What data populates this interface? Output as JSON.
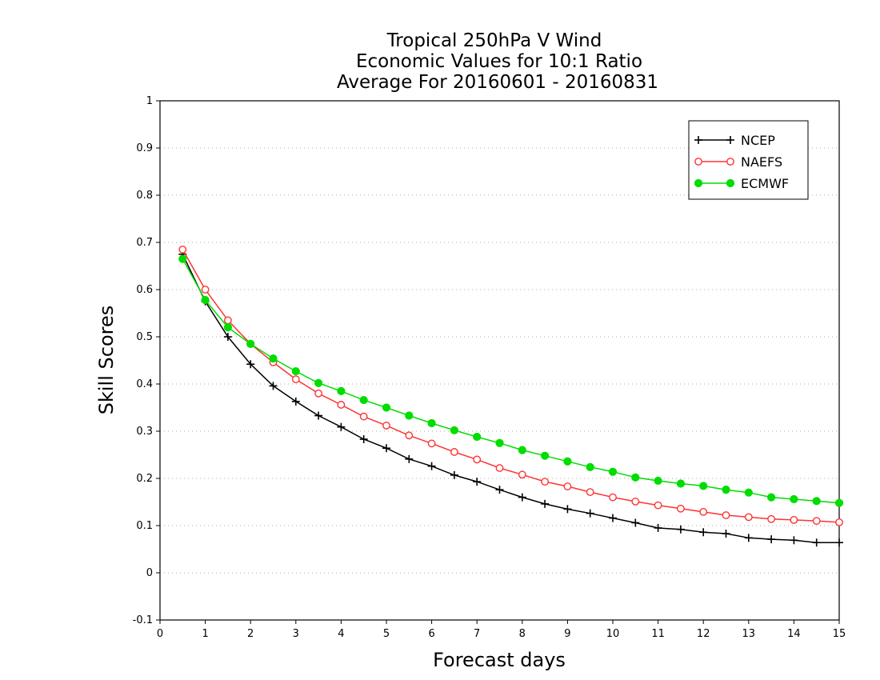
{
  "chart_data": {
    "type": "line",
    "title_lines": [
      "Tropical 250hPa V Wind",
      "Economic Values for 10:1 Ratio",
      "Average For 20160601 - 20160831"
    ],
    "xlabel": "Forecast days",
    "ylabel": "Skill Scores",
    "xlim": [
      0,
      15
    ],
    "ylim": [
      -0.1,
      1
    ],
    "x_ticks": [
      "0",
      "1",
      "2",
      "3",
      "4",
      "5",
      "6",
      "7",
      "8",
      "9",
      "10",
      "11",
      "12",
      "13",
      "14",
      "15"
    ],
    "y_ticks": [
      "-0.1",
      "0",
      "0.1",
      "0.2",
      "0.3",
      "0.4",
      "0.5",
      "0.6",
      "0.7",
      "0.8",
      "0.9",
      "1"
    ],
    "grid": "horizontal dotted",
    "legend_position": "top-right",
    "x": [
      0.5,
      1,
      1.5,
      2,
      2.5,
      3,
      3.5,
      4,
      4.5,
      5,
      5.5,
      6,
      6.5,
      7,
      7.5,
      8,
      8.5,
      9,
      9.5,
      10,
      10.5,
      11,
      11.5,
      12,
      12.5,
      13,
      13.5,
      14,
      14.5,
      15
    ],
    "series": [
      {
        "name": "NCEP",
        "color": "#000000",
        "marker": "plus",
        "values": [
          0.675,
          0.575,
          0.5,
          0.442,
          0.396,
          0.363,
          0.333,
          0.309,
          0.283,
          0.264,
          0.241,
          0.226,
          0.207,
          0.193,
          0.176,
          0.16,
          0.146,
          0.135,
          0.126,
          0.116,
          0.106,
          0.095,
          0.092,
          0.086,
          0.083,
          0.074,
          0.071,
          0.069,
          0.064,
          0.064
        ]
      },
      {
        "name": "NAEFS",
        "color": "#ff3333",
        "marker": "open-circle",
        "values": [
          0.685,
          0.6,
          0.535,
          0.485,
          0.446,
          0.41,
          0.38,
          0.356,
          0.331,
          0.312,
          0.291,
          0.274,
          0.256,
          0.24,
          0.222,
          0.208,
          0.193,
          0.183,
          0.171,
          0.16,
          0.151,
          0.143,
          0.136,
          0.129,
          0.122,
          0.118,
          0.114,
          0.112,
          0.11,
          0.107
        ]
      },
      {
        "name": "ECMWF",
        "color": "#00dd00",
        "marker": "filled-circle",
        "values": [
          0.665,
          0.578,
          0.52,
          0.485,
          0.454,
          0.427,
          0.402,
          0.385,
          0.366,
          0.35,
          0.333,
          0.317,
          0.302,
          0.288,
          0.275,
          0.26,
          0.248,
          0.236,
          0.224,
          0.214,
          0.202,
          0.195,
          0.189,
          0.184,
          0.176,
          0.17,
          0.16,
          0.156,
          0.152,
          0.148
        ]
      }
    ]
  }
}
